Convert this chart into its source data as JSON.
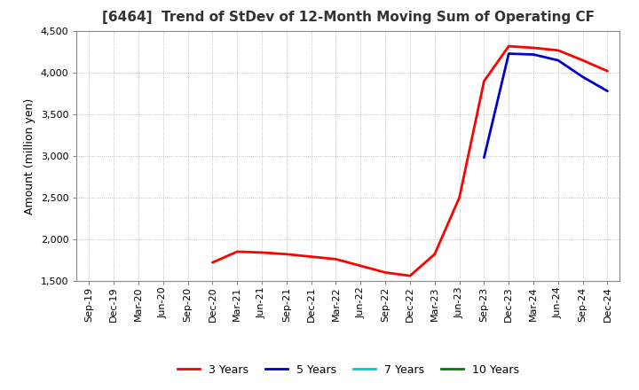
{
  "title": "[6464]  Trend of StDev of 12-Month Moving Sum of Operating CF",
  "ylabel": "Amount (million yen)",
  "ylim": [
    1500,
    4500
  ],
  "yticks": [
    1500,
    2000,
    2500,
    3000,
    3500,
    4000,
    4500
  ],
  "background_color": "#ffffff",
  "grid_color": "#aaaaaa",
  "series": {
    "3 Years": {
      "color": "#ff0000",
      "values": [
        null,
        null,
        null,
        null,
        null,
        1720,
        1850,
        1840,
        1820,
        1790,
        1760,
        1680,
        1600,
        1560,
        1820,
        2500,
        3900,
        4320,
        4300,
        4270,
        4150,
        4020
      ]
    },
    "5 Years": {
      "color": "#0000cc",
      "values": [
        null,
        null,
        null,
        null,
        null,
        null,
        null,
        null,
        null,
        null,
        null,
        null,
        null,
        null,
        null,
        null,
        2980,
        4230,
        4220,
        4150,
        3950,
        3780
      ]
    },
    "7 Years": {
      "color": "#00cccc",
      "values": [
        null,
        null,
        null,
        null,
        null,
        null,
        null,
        null,
        null,
        null,
        null,
        null,
        null,
        null,
        null,
        null,
        null,
        null,
        null,
        null,
        null,
        null
      ]
    },
    "10 Years": {
      "color": "#008000",
      "values": [
        null,
        null,
        null,
        null,
        null,
        null,
        null,
        null,
        null,
        null,
        null,
        null,
        null,
        null,
        null,
        null,
        null,
        null,
        null,
        null,
        null,
        null
      ]
    }
  },
  "dates": [
    "Sep-19",
    "Dec-19",
    "Mar-20",
    "Jun-20",
    "Sep-20",
    "Dec-20",
    "Mar-21",
    "Jun-21",
    "Sep-21",
    "Dec-21",
    "Mar-22",
    "Jun-22",
    "Sep-22",
    "Dec-22",
    "Mar-23",
    "Jun-23",
    "Sep-23",
    "Dec-23",
    "Mar-24",
    "Jun-24",
    "Sep-24",
    "Dec-24"
  ],
  "legend_labels": [
    "3 Years",
    "5 Years",
    "7 Years",
    "10 Years"
  ],
  "legend_colors": [
    "#ff0000",
    "#0000cc",
    "#00cccc",
    "#008000"
  ]
}
